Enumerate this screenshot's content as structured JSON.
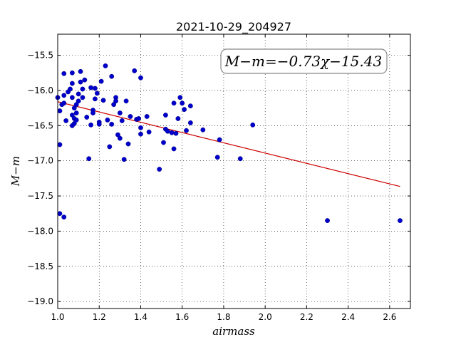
{
  "chart_data": {
    "type": "scatter",
    "title": "2021-10-29_204927",
    "xlabel": "airmass",
    "ylabel": "M−m",
    "annotation": "M−m=−0.73χ−15.43",
    "xlim": [
      1.0,
      2.7
    ],
    "ylim": [
      -19.1,
      -15.2
    ],
    "y_inverted": true,
    "grid": true,
    "xticks": [
      1.0,
      1.2,
      1.4,
      1.6,
      1.8,
      2.0,
      2.2,
      2.4,
      2.6
    ],
    "xtick_labels": [
      "1.0",
      "1.2",
      "1.4",
      "1.6",
      "1.8",
      "2.0",
      "2.2",
      "2.4",
      "2.6"
    ],
    "yticks": [
      -15.5,
      -16.0,
      -16.5,
      -17.0,
      -17.5,
      -18.0,
      -18.5,
      -19.0
    ],
    "ytick_labels": [
      "−15.5",
      "−16.0",
      "−16.5",
      "−17.0",
      "−17.5",
      "−18.0",
      "−18.5",
      "−19.0"
    ],
    "point_color": "#0000cc",
    "line_color": "#cc0000",
    "fit": {
      "slope": -0.73,
      "intercept": -15.43,
      "x_range": [
        1.0,
        2.65
      ]
    },
    "points": [
      [
        1.0,
        -16.1
      ],
      [
        1.01,
        -16.29
      ],
      [
        1.01,
        -16.77
      ],
      [
        1.02,
        -16.2
      ],
      [
        1.03,
        -16.18
      ],
      [
        1.03,
        -16.07
      ],
      [
        1.03,
        -15.76
      ],
      [
        1.04,
        -16.43
      ],
      [
        1.05,
        -16.02
      ],
      [
        1.06,
        -15.98
      ],
      [
        1.07,
        -16.35
      ],
      [
        1.07,
        -16.1
      ],
      [
        1.07,
        -16.5
      ],
      [
        1.07,
        -15.9
      ],
      [
        1.07,
        -15.75
      ],
      [
        1.08,
        -16.25
      ],
      [
        1.08,
        -16.4
      ],
      [
        1.08,
        -16.47
      ],
      [
        1.09,
        -16.32
      ],
      [
        1.09,
        -16.42
      ],
      [
        1.09,
        -16.2
      ],
      [
        1.1,
        -16.05
      ],
      [
        1.1,
        -16.15
      ],
      [
        1.11,
        -15.73
      ],
      [
        1.11,
        -15.88
      ],
      [
        1.12,
        -16.1
      ],
      [
        1.12,
        -15.98
      ],
      [
        1.13,
        -15.85
      ],
      [
        1.14,
        -16.38
      ],
      [
        1.15,
        -16.97
      ],
      [
        1.16,
        -16.49
      ],
      [
        1.16,
        -15.96
      ],
      [
        1.17,
        -16.28
      ],
      [
        1.17,
        -16.32
      ],
      [
        1.18,
        -15.97
      ],
      [
        1.18,
        -16.12
      ],
      [
        1.19,
        -16.04
      ],
      [
        1.2,
        -16.45
      ],
      [
        1.2,
        -16.48
      ],
      [
        1.21,
        -15.87
      ],
      [
        1.22,
        -16.14
      ],
      [
        1.23,
        -15.65
      ],
      [
        1.24,
        -16.42
      ],
      [
        1.25,
        -16.8
      ],
      [
        1.26,
        -15.8
      ],
      [
        1.26,
        -16.48
      ],
      [
        1.27,
        -16.2
      ],
      [
        1.28,
        -16.1
      ],
      [
        1.28,
        -16.15
      ],
      [
        1.29,
        -16.63
      ],
      [
        1.3,
        -16.68
      ],
      [
        1.3,
        -16.32
      ],
      [
        1.31,
        -16.43
      ],
      [
        1.32,
        -16.98
      ],
      [
        1.33,
        -16.15
      ],
      [
        1.34,
        -16.76
      ],
      [
        1.35,
        -16.37
      ],
      [
        1.37,
        -15.72
      ],
      [
        1.38,
        -16.41
      ],
      [
        1.39,
        -16.4
      ],
      [
        1.4,
        -15.82
      ],
      [
        1.4,
        -16.53
      ],
      [
        1.4,
        -16.62
      ],
      [
        1.43,
        -16.37
      ],
      [
        1.44,
        -16.59
      ],
      [
        1.49,
        -17.12
      ],
      [
        1.51,
        -16.74
      ],
      [
        1.52,
        -16.35
      ],
      [
        1.52,
        -16.55
      ],
      [
        1.53,
        -16.58
      ],
      [
        1.55,
        -16.6
      ],
      [
        1.56,
        -16.83
      ],
      [
        1.56,
        -16.18
      ],
      [
        1.57,
        -16.61
      ],
      [
        1.58,
        -16.4
      ],
      [
        1.59,
        -16.1
      ],
      [
        1.6,
        -16.18
      ],
      [
        1.61,
        -16.27
      ],
      [
        1.62,
        -16.57
      ],
      [
        1.64,
        -16.46
      ],
      [
        1.64,
        -16.22
      ],
      [
        1.7,
        -16.56
      ],
      [
        1.77,
        -16.95
      ],
      [
        1.78,
        -16.7
      ],
      [
        1.88,
        -16.97
      ],
      [
        1.94,
        -16.49
      ],
      [
        1.01,
        -17.75
      ],
      [
        1.03,
        -17.8
      ],
      [
        2.3,
        -17.85
      ],
      [
        2.65,
        -17.85
      ]
    ]
  }
}
